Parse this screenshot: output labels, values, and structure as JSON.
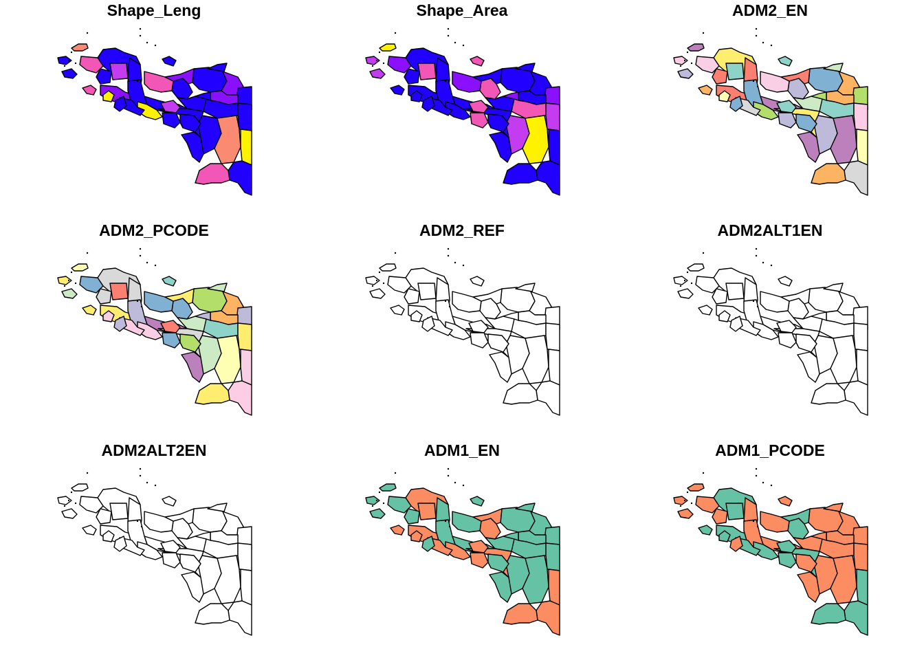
{
  "panels": [
    {
      "title": "Shape_Leng",
      "scheme": "continuous"
    },
    {
      "title": "Shape_Area",
      "scheme": "continuous"
    },
    {
      "title": "ADM2_EN",
      "scheme": "categorical"
    },
    {
      "title": "ADM2_PCODE",
      "scheme": "categorical"
    },
    {
      "title": "ADM2_REF",
      "scheme": "empty"
    },
    {
      "title": "ADM2ALT1EN",
      "scheme": "empty"
    },
    {
      "title": "ADM2ALT2EN",
      "scheme": "empty"
    },
    {
      "title": "ADM1_EN",
      "scheme": "province"
    },
    {
      "title": "ADM1_PCODE",
      "scheme": "province"
    }
  ],
  "colors": {
    "continuous_low": "#2200ff",
    "continuous_mid_purple": "#8b10ff",
    "continuous_mid_magenta": "#c43cf0",
    "continuous_pink": "#f256b6",
    "continuous_salmon": "#fa8a72",
    "continuous_high": "#fff200",
    "province_green": "#66c2a5",
    "province_orange": "#fc8d62",
    "empty": "#ffffff",
    "outline": "#000000"
  },
  "region_fills": {
    "Shape_Leng": [
      "#2200ff",
      "#c43cf0",
      "#2200ff",
      "#f256b6",
      "#8b10ff",
      "#2200ff",
      "#2200ff",
      "#8b10ff",
      "#2200ff",
      "#2200ff",
      "#2200ff",
      "#2200ff",
      "#2200ff",
      "#2200ff",
      "#fa8a72",
      "#fff200",
      "#2200ff",
      "#f256b6",
      "#2200ff",
      "#fff200"
    ],
    "Shape_Area": [
      "#2200ff",
      "#f256b6",
      "#2200ff",
      "#8b10ff",
      "#2200ff",
      "#f256b6",
      "#2200ff",
      "#2200ff",
      "#8b10ff",
      "#2200ff",
      "#2200ff",
      "#f256b6",
      "#c43cf0",
      "#c43cf0",
      "#fff200",
      "#2200ff",
      "#2200ff",
      "#2200ff",
      "#2200ff",
      "#2200ff"
    ],
    "ADM2_EN": [
      "#ffed6f",
      "#8dd3c7",
      "#fb8072",
      "#f8cfe5",
      "#fb8072",
      "#bebada",
      "#80b1d3",
      "#fdb462",
      "#b3de69",
      "#bc80bd",
      "#ccebc5",
      "#8dd3c7",
      "#fccde5",
      "#bebada",
      "#bc80bd",
      "#ffffb3",
      "#d9d9d9",
      "#fdb462",
      "#80b1d3",
      "#b3de69"
    ],
    "ADM2_PCODE": [
      "#d9d9d9",
      "#fb8072",
      "#d9d9d9",
      "#80b1d3",
      "#ffed6f",
      "#80b1d3",
      "#b3de69",
      "#fdb462",
      "#bebada",
      "#bc80bd",
      "#ccebc5",
      "#8dd3c7",
      "#ffed6f",
      "#ccebc5",
      "#ffffb3",
      "#f8cfe5",
      "#fccde5",
      "#ffed6f",
      "#bebada",
      "#f8cfe5"
    ],
    "ADM2_REF": [
      "#ffffff",
      "#ffffff",
      "#ffffff",
      "#ffffff",
      "#ffffff",
      "#ffffff",
      "#ffffff",
      "#ffffff",
      "#ffffff",
      "#ffffff",
      "#ffffff",
      "#ffffff",
      "#ffffff",
      "#ffffff",
      "#ffffff",
      "#ffffff",
      "#ffffff",
      "#ffffff",
      "#ffffff",
      "#ffffff"
    ],
    "ADM2ALT1EN": [
      "#ffffff",
      "#ffffff",
      "#ffffff",
      "#ffffff",
      "#ffffff",
      "#ffffff",
      "#ffffff",
      "#ffffff",
      "#ffffff",
      "#ffffff",
      "#ffffff",
      "#ffffff",
      "#ffffff",
      "#ffffff",
      "#ffffff",
      "#ffffff",
      "#ffffff",
      "#ffffff",
      "#ffffff",
      "#ffffff"
    ],
    "ADM2ALT2EN": [
      "#ffffff",
      "#ffffff",
      "#ffffff",
      "#ffffff",
      "#ffffff",
      "#ffffff",
      "#ffffff",
      "#ffffff",
      "#ffffff",
      "#ffffff",
      "#ffffff",
      "#ffffff",
      "#ffffff",
      "#ffffff",
      "#ffffff",
      "#ffffff",
      "#ffffff",
      "#ffffff",
      "#ffffff",
      "#ffffff"
    ],
    "ADM1_EN": [
      "#fc8d62",
      "#fc8d62",
      "#66c2a5",
      "#66c2a5",
      "#fc8d62",
      "#fc8d62",
      "#66c2a5",
      "#66c2a5",
      "#66c2a5",
      "#66c2a5",
      "#66c2a5",
      "#66c2a5",
      "#66c2a5",
      "#66c2a5",
      "#66c2a5",
      "#fc8d62",
      "#fc8d62",
      "#fc8d62",
      "#66c2a5",
      "#fc8d62"
    ],
    "ADM1_PCODE": [
      "#66c2a5",
      "#66c2a5",
      "#fc8d62",
      "#fc8d62",
      "#66c2a5",
      "#66c2a5",
      "#fc8d62",
      "#fc8d62",
      "#fc8d62",
      "#fc8d62",
      "#fc8d62",
      "#fc8d62",
      "#fc8d62",
      "#fc8d62",
      "#fc8d62",
      "#66c2a5",
      "#66c2a5",
      "#66c2a5",
      "#fc8d62",
      "#66c2a5"
    ]
  }
}
